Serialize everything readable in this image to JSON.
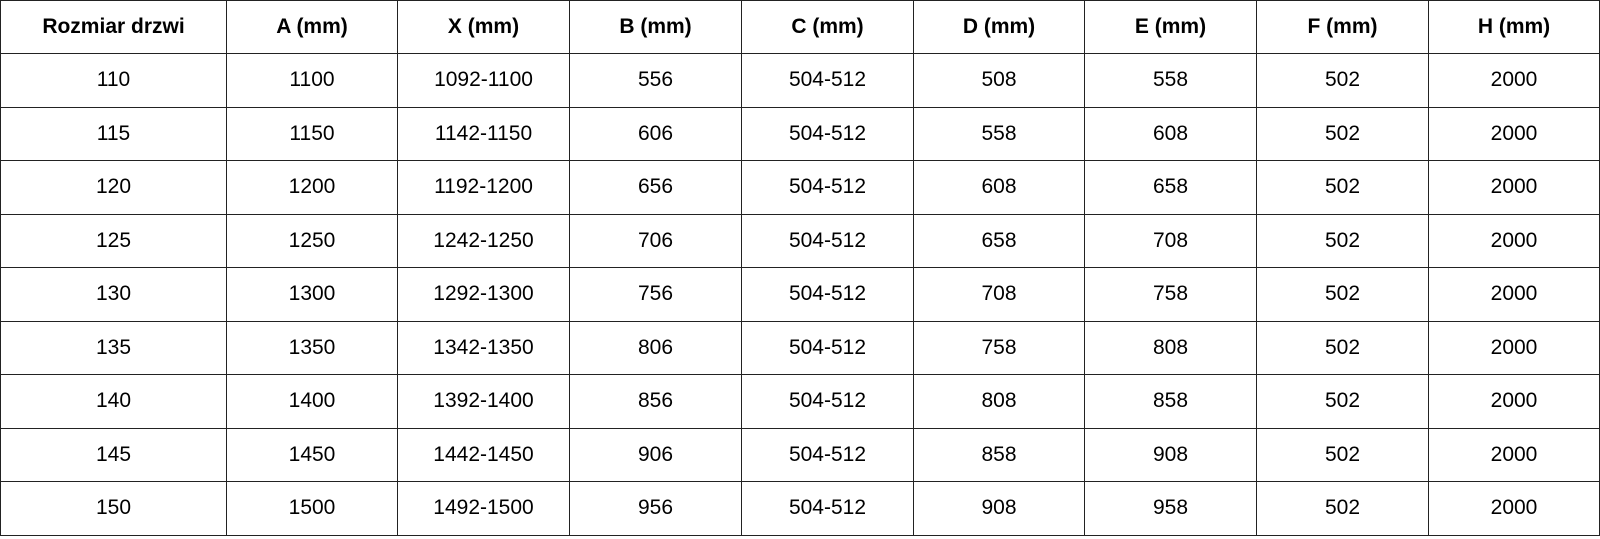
{
  "table": {
    "headers": [
      "Rozmiar drzwi",
      "A (mm)",
      "X (mm)",
      "B (mm)",
      "C (mm)",
      "D (mm)",
      "E (mm)",
      "F (mm)",
      "H (mm)"
    ],
    "rows": [
      [
        "110",
        "1100",
        "1092-1100",
        "556",
        "504-512",
        "508",
        "558",
        "502",
        "2000"
      ],
      [
        "115",
        "1150",
        "1142-1150",
        "606",
        "504-512",
        "558",
        "608",
        "502",
        "2000"
      ],
      [
        "120",
        "1200",
        "1192-1200",
        "656",
        "504-512",
        "608",
        "658",
        "502",
        "2000"
      ],
      [
        "125",
        "1250",
        "1242-1250",
        "706",
        "504-512",
        "658",
        "708",
        "502",
        "2000"
      ],
      [
        "130",
        "1300",
        "1292-1300",
        "756",
        "504-512",
        "708",
        "758",
        "502",
        "2000"
      ],
      [
        "135",
        "1350",
        "1342-1350",
        "806",
        "504-512",
        "758",
        "808",
        "502",
        "2000"
      ],
      [
        "140",
        "1400",
        "1392-1400",
        "856",
        "504-512",
        "808",
        "858",
        "502",
        "2000"
      ],
      [
        "145",
        "1450",
        "1442-1450",
        "906",
        "504-512",
        "858",
        "908",
        "502",
        "2000"
      ],
      [
        "150",
        "1500",
        "1492-1500",
        "956",
        "504-512",
        "908",
        "958",
        "502",
        "2000"
      ]
    ]
  }
}
